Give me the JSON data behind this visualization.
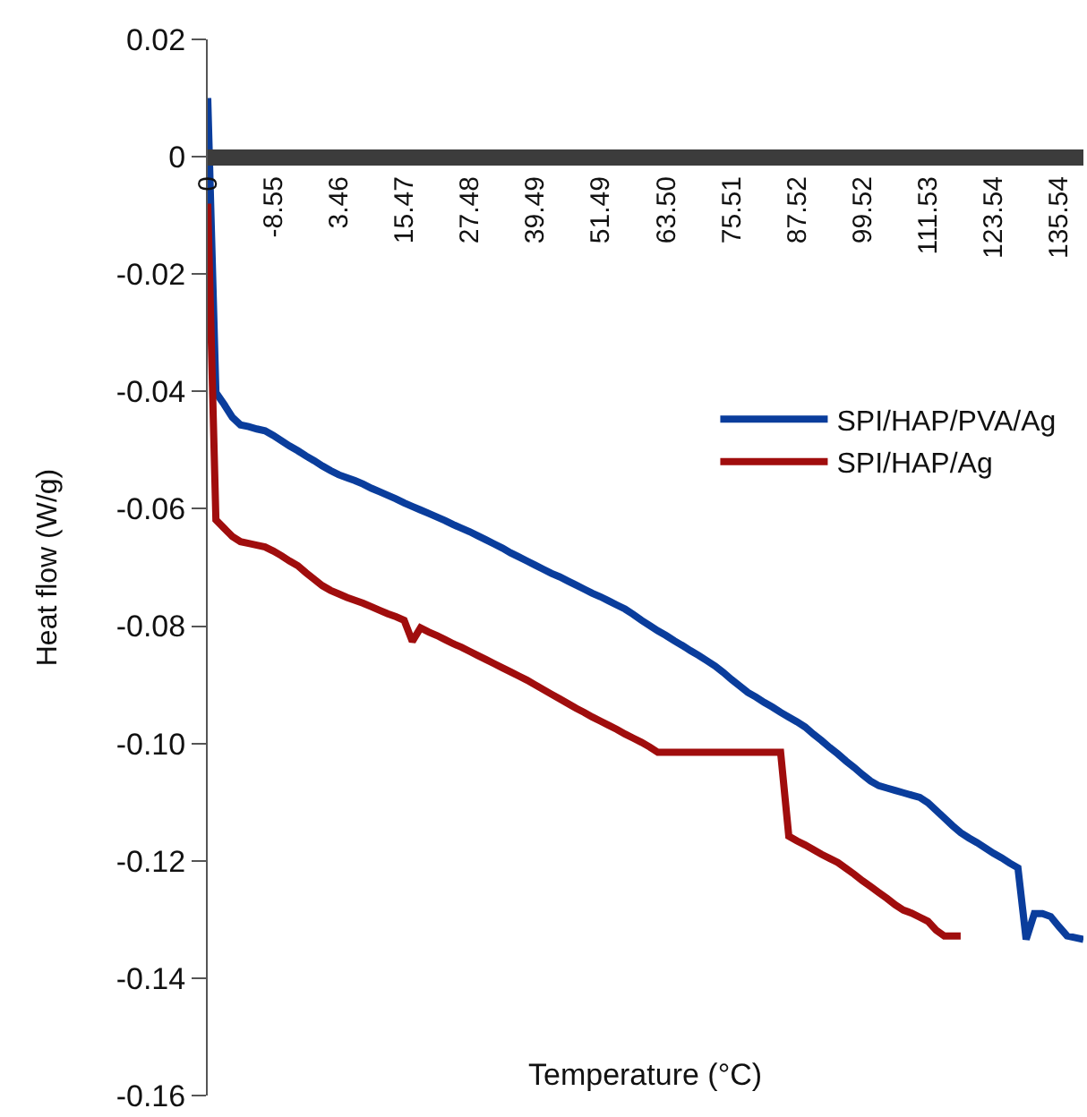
{
  "chart_data": {
    "type": "line",
    "xlabel": "Temperature (°C)",
    "ylabel": "Heat flow (W/g)",
    "categories": [
      "0",
      null,
      null,
      null,
      null,
      null,
      null,
      null,
      "-8.55",
      null,
      null,
      null,
      null,
      null,
      null,
      null,
      "3.46",
      null,
      null,
      null,
      null,
      null,
      null,
      null,
      "15.47",
      null,
      null,
      null,
      null,
      null,
      null,
      null,
      "27.48",
      null,
      null,
      null,
      null,
      null,
      null,
      null,
      "39.49",
      null,
      null,
      null,
      null,
      null,
      null,
      null,
      "51.49",
      null,
      null,
      null,
      null,
      null,
      null,
      null,
      "63.50",
      null,
      null,
      null,
      null,
      null,
      null,
      null,
      "75.51",
      null,
      null,
      null,
      null,
      null,
      null,
      null,
      "87.52",
      null,
      null,
      null,
      null,
      null,
      null,
      null,
      "99.52",
      null,
      null,
      null,
      null,
      null,
      null,
      null,
      "111.53",
      null,
      null,
      null,
      null,
      null,
      null,
      null,
      "123.54",
      null,
      null,
      null,
      null,
      null,
      null,
      null,
      "135.54",
      null,
      null,
      null
    ],
    "ylim": [
      -0.16,
      0.02
    ],
    "yticks": [
      0.02,
      0,
      -0.02,
      -0.04,
      -0.06,
      -0.08,
      {
        "value": -0.1,
        "label": "-0.10"
      },
      -0.12,
      -0.14,
      -0.16
    ],
    "legend": "right",
    "marker": "none",
    "line_style": "solid",
    "series": [
      {
        "name": "SPI/HAP/PVA/Ag",
        "color": "#0a3d9c",
        "values": [
          0.01,
          -0.0402,
          -0.0422,
          -0.0444,
          -0.0457,
          -0.046,
          -0.0464,
          -0.0467,
          -0.0475,
          -0.0484,
          -0.0493,
          -0.0501,
          -0.051,
          -0.0518,
          -0.0527,
          -0.0535,
          -0.0542,
          -0.0547,
          -0.0552,
          -0.0558,
          -0.0565,
          -0.0571,
          -0.0577,
          -0.0583,
          -0.059,
          -0.0596,
          -0.0602,
          -0.0608,
          -0.0614,
          -0.062,
          -0.0627,
          -0.0633,
          -0.0639,
          -0.0646,
          -0.0653,
          -0.066,
          -0.0667,
          -0.0675,
          -0.0682,
          -0.0689,
          -0.0696,
          -0.0703,
          -0.071,
          -0.0716,
          -0.0723,
          -0.073,
          -0.0737,
          -0.0744,
          -0.075,
          -0.0757,
          -0.0764,
          -0.0771,
          -0.078,
          -0.079,
          -0.0799,
          -0.0808,
          -0.0816,
          -0.0825,
          -0.0833,
          -0.0842,
          -0.085,
          -0.0859,
          -0.0868,
          -0.0879,
          -0.0891,
          -0.0902,
          -0.0913,
          -0.0921,
          -0.093,
          -0.0938,
          -0.0947,
          -0.0955,
          -0.0963,
          -0.0972,
          -0.0984,
          -0.0995,
          -0.1007,
          -0.1018,
          -0.103,
          -0.1041,
          -0.1053,
          -0.1064,
          -0.1072,
          -0.1076,
          -0.108,
          -0.1084,
          -0.1088,
          -0.1092,
          -0.1101,
          -0.1114,
          -0.1127,
          -0.114,
          -0.1152,
          -0.1161,
          -0.1169,
          -0.1178,
          -0.1187,
          -0.1195,
          -0.1204,
          -0.1212,
          -0.1334,
          -0.129,
          -0.129,
          -0.1295,
          -0.1312,
          -0.1328,
          -0.1331,
          -0.1334
        ]
      },
      {
        "name": "SPI/HAP/Ag",
        "color": "#a00d0d",
        "values": [
          -0.008,
          -0.0619,
          -0.0633,
          -0.0647,
          -0.0656,
          -0.0659,
          -0.0662,
          -0.0665,
          -0.0672,
          -0.068,
          -0.0689,
          -0.0697,
          -0.0709,
          -0.072,
          -0.0731,
          -0.0739,
          -0.0745,
          -0.0751,
          -0.0756,
          -0.0761,
          -0.0767,
          -0.0773,
          -0.0779,
          -0.0784,
          -0.079,
          -0.0826,
          -0.0803,
          -0.081,
          -0.0816,
          -0.0823,
          -0.083,
          -0.0836,
          -0.0843,
          -0.085,
          -0.0857,
          -0.0864,
          -0.0871,
          -0.0878,
          -0.0885,
          -0.0892,
          -0.09,
          -0.0908,
          -0.0916,
          -0.0924,
          -0.0932,
          -0.094,
          -0.0947,
          -0.0955,
          -0.0962,
          -0.0969,
          -0.0976,
          -0.0984,
          -0.0991,
          -0.0998,
          -0.1006,
          -0.1015,
          -0.1015,
          -0.1015,
          -0.1015,
          -0.1015,
          -0.1015,
          -0.1015,
          -0.1015,
          -0.1015,
          -0.1015,
          -0.1015,
          -0.1015,
          -0.1015,
          -0.1015,
          -0.1015,
          -0.1015,
          -0.1158,
          -0.1166,
          -0.1173,
          -0.1181,
          -0.1189,
          -0.1196,
          -0.1203,
          -0.1213,
          -0.1223,
          -0.1234,
          -0.1244,
          -0.1254,
          -0.1264,
          -0.1275,
          -0.1284,
          -0.1289,
          -0.1296,
          -0.1303,
          -0.1318,
          -0.1328,
          -0.1328,
          -0.1328,
          null,
          null,
          null,
          null,
          null,
          null,
          null,
          null,
          null,
          null,
          null,
          null,
          null,
          null,
          null
        ]
      }
    ]
  }
}
